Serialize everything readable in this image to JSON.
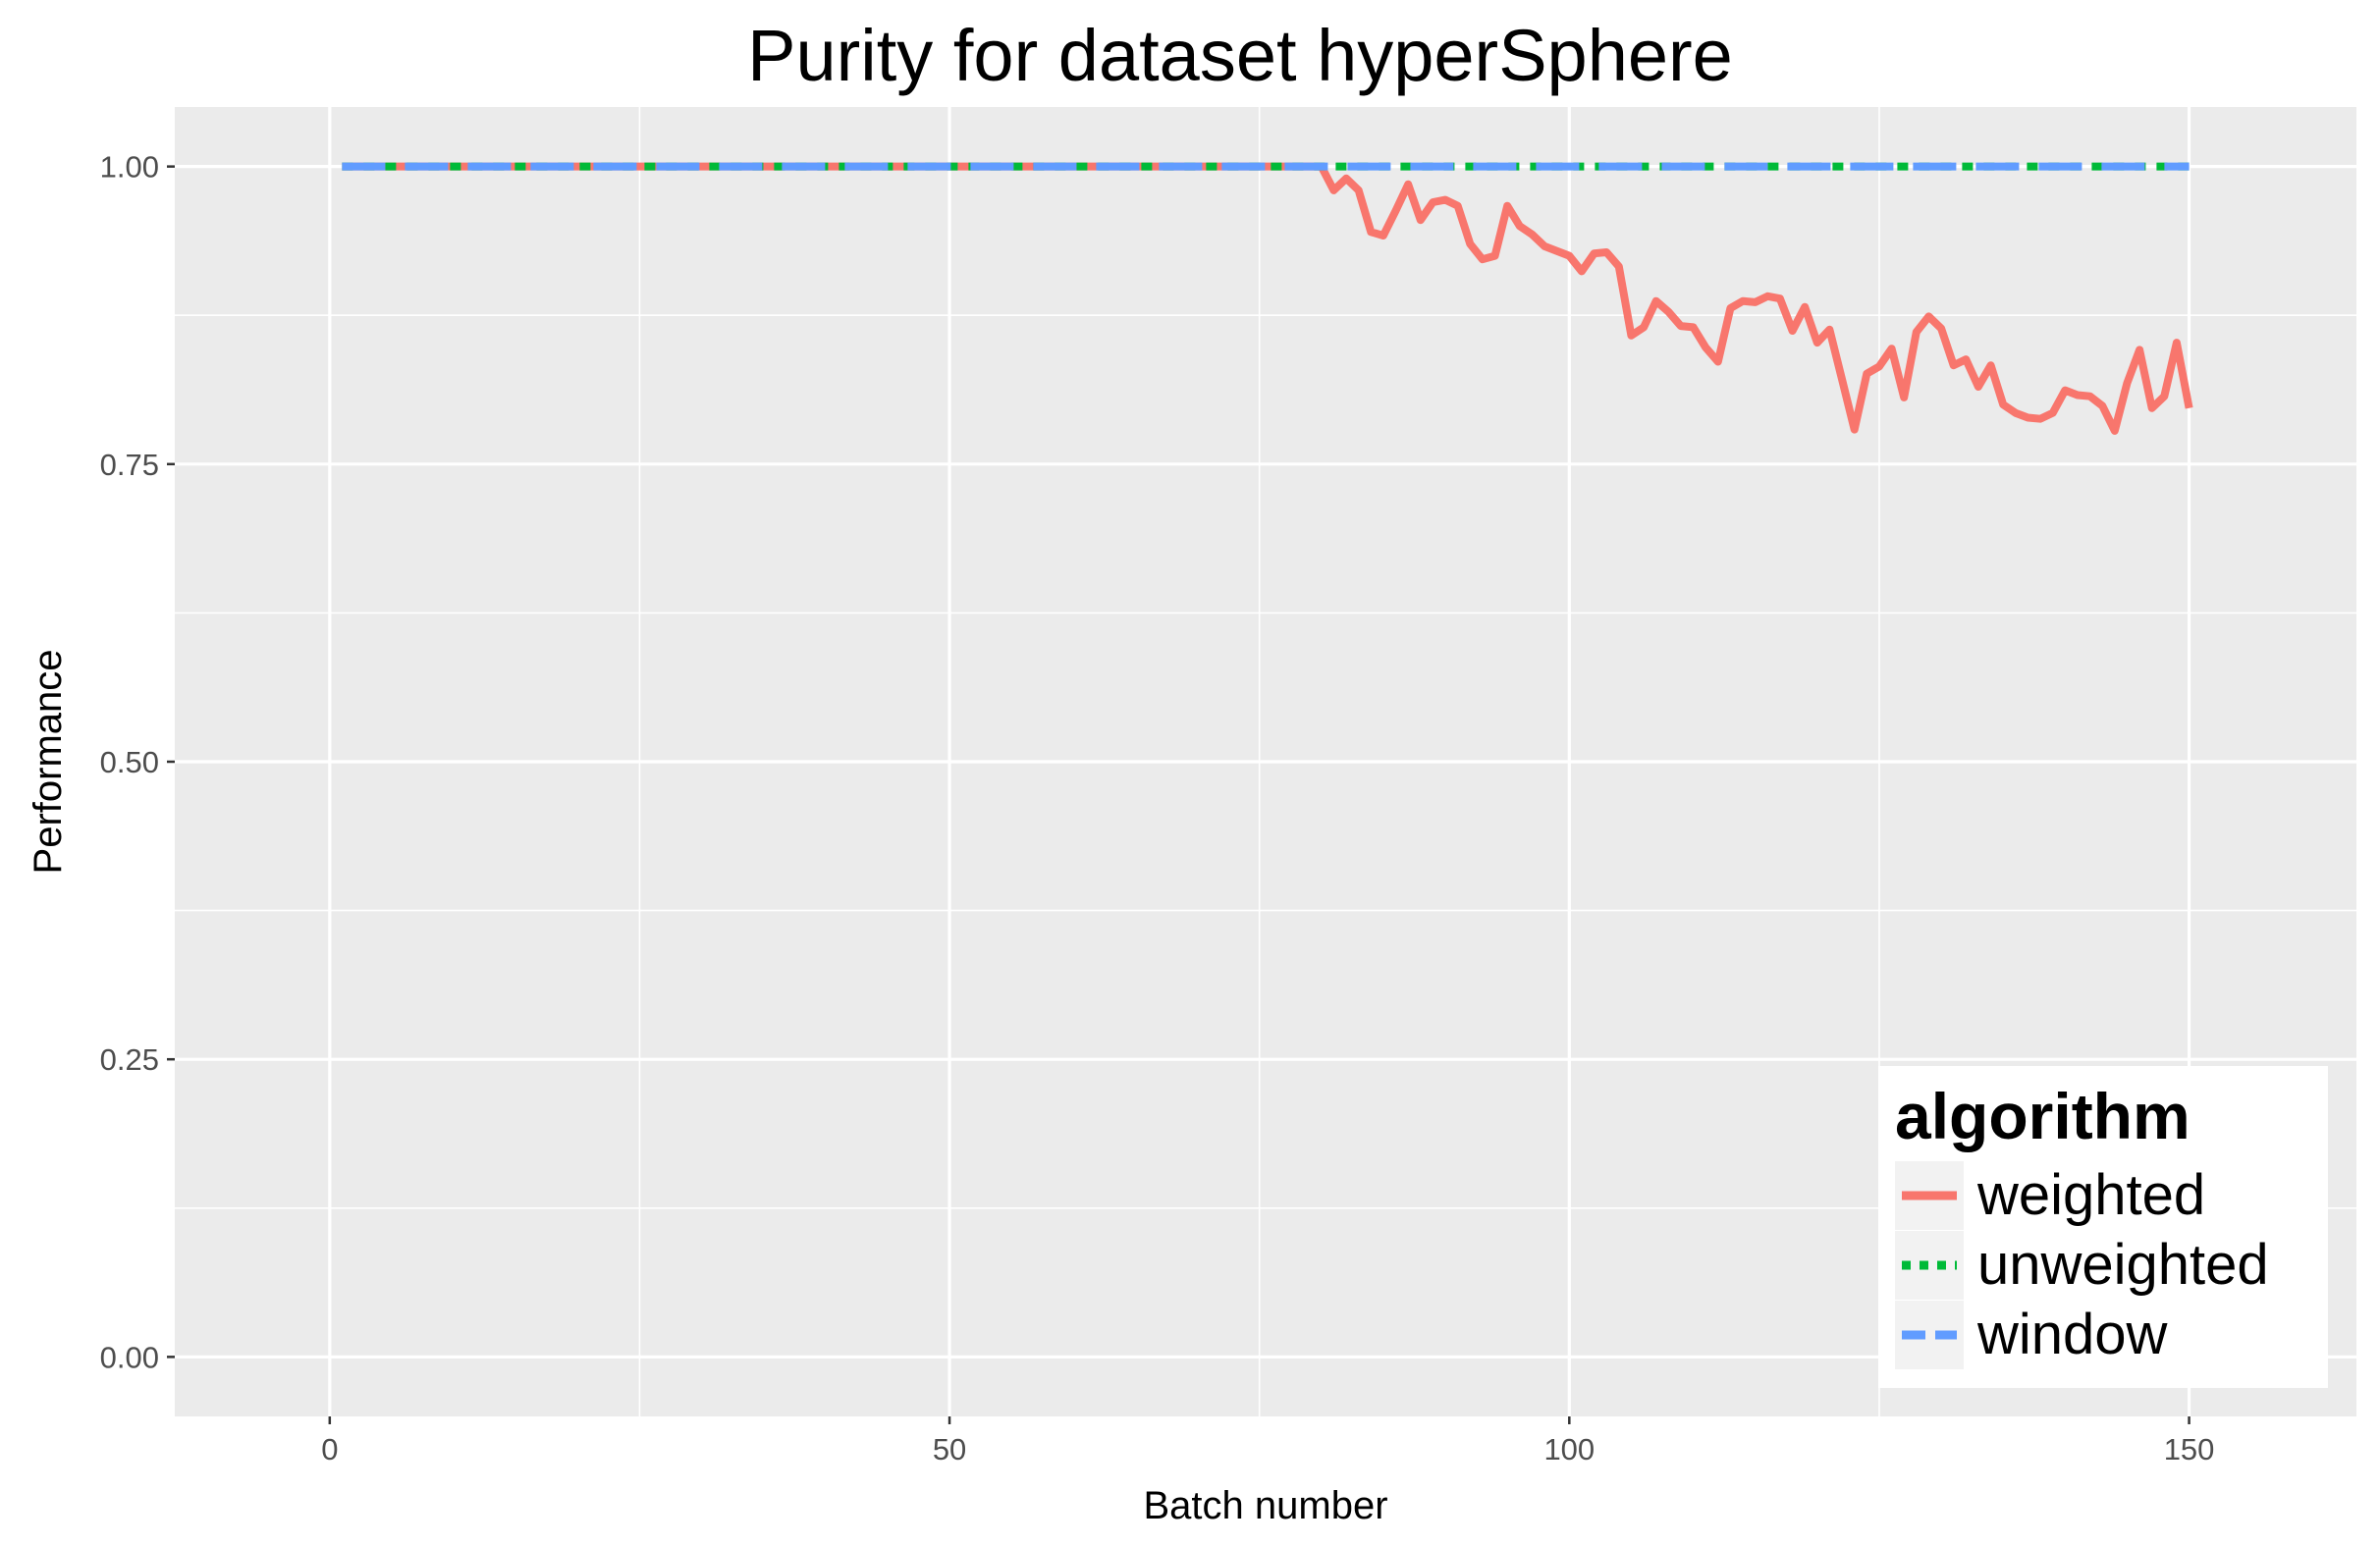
{
  "chart_data": {
    "type": "line",
    "title": "Purity for dataset hyperSphere",
    "xlabel": "Batch number",
    "ylabel": "Performance",
    "xlim": [
      -12.5,
      163.5
    ],
    "ylim": [
      -0.05,
      1.05
    ],
    "x_ticks": [
      0,
      50,
      100,
      150
    ],
    "x_tick_labels": [
      "0",
      "50",
      "100",
      "150"
    ],
    "y_ticks": [
      0,
      0.25,
      0.5,
      0.75,
      1.0
    ],
    "y_tick_labels": [
      "0.00",
      "0.25",
      "0.50",
      "0.75",
      "1.00"
    ],
    "grid": true,
    "legend": {
      "title": "algorithm",
      "position": "bottom-right",
      "entries": [
        "weighted",
        "unweighted",
        "window"
      ]
    },
    "series": [
      {
        "name": "weighted",
        "color": "#F8766D",
        "dash": "solid",
        "points": [
          [
            1,
            1.0
          ],
          [
            80,
            1.0
          ],
          [
            81,
            0.98
          ],
          [
            82,
            0.99
          ],
          [
            83,
            0.98
          ],
          [
            84,
            0.945
          ],
          [
            85,
            0.942
          ],
          [
            86,
            0.963
          ],
          [
            87,
            0.985
          ],
          [
            88,
            0.955
          ],
          [
            89,
            0.97
          ],
          [
            90,
            0.972
          ],
          [
            91,
            0.967
          ],
          [
            92,
            0.935
          ],
          [
            93,
            0.922
          ],
          [
            94,
            0.925
          ],
          [
            95,
            0.967
          ],
          [
            96,
            0.95
          ],
          [
            97,
            0.943
          ],
          [
            98,
            0.933
          ],
          [
            99,
            0.929
          ],
          [
            100,
            0.925
          ],
          [
            101,
            0.912
          ],
          [
            102,
            0.927
          ],
          [
            103,
            0.928
          ],
          [
            104,
            0.916
          ],
          [
            105,
            0.858
          ],
          [
            106,
            0.865
          ],
          [
            107,
            0.887
          ],
          [
            108,
            0.878
          ],
          [
            109,
            0.866
          ],
          [
            110,
            0.865
          ],
          [
            111,
            0.848
          ],
          [
            112,
            0.836
          ],
          [
            113,
            0.881
          ],
          [
            114,
            0.887
          ],
          [
            115,
            0.886
          ],
          [
            116,
            0.891
          ],
          [
            117,
            0.889
          ],
          [
            118,
            0.862
          ],
          [
            119,
            0.882
          ],
          [
            120,
            0.852
          ],
          [
            121,
            0.863
          ],
          [
            122,
            0.821
          ],
          [
            123,
            0.779
          ],
          [
            124,
            0.826
          ],
          [
            125,
            0.832
          ],
          [
            126,
            0.847
          ],
          [
            127,
            0.806
          ],
          [
            128,
            0.861
          ],
          [
            129,
            0.874
          ],
          [
            130,
            0.864
          ],
          [
            131,
            0.833
          ],
          [
            132,
            0.838
          ],
          [
            133,
            0.815
          ],
          [
            134,
            0.833
          ],
          [
            135,
            0.8
          ],
          [
            136,
            0.793
          ],
          [
            137,
            0.789
          ],
          [
            138,
            0.788
          ],
          [
            139,
            0.793
          ],
          [
            140,
            0.812
          ],
          [
            141,
            0.808
          ],
          [
            142,
            0.807
          ],
          [
            143,
            0.799
          ],
          [
            144,
            0.778
          ],
          [
            145,
            0.818
          ],
          [
            146,
            0.846
          ],
          [
            147,
            0.797
          ],
          [
            148,
            0.807
          ],
          [
            149,
            0.852
          ],
          [
            150,
            0.797
          ]
        ]
      },
      {
        "name": "unweighted",
        "color": "#00BA38",
        "dash": "dotted",
        "points": [
          [
            1,
            1.0
          ],
          [
            150,
            1.0
          ]
        ]
      },
      {
        "name": "window",
        "color": "#619CFF",
        "dash": "dashed",
        "points": [
          [
            1,
            1.0
          ],
          [
            150,
            1.0
          ]
        ]
      }
    ]
  }
}
